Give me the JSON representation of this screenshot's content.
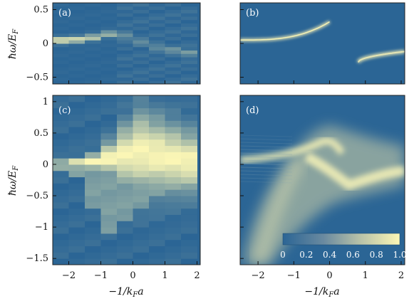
{
  "chart_data": [
    {
      "panel": "(a)",
      "type": "heatmap",
      "x": [
        -2.25,
        -1.75,
        -1.25,
        -0.75,
        -0.25,
        0.25,
        0.75,
        1.25,
        1.75
      ],
      "ylim": [
        -0.6,
        0.6
      ],
      "xlim": [
        -2.5,
        2.1
      ],
      "ridge_peak_y": [
        0.05,
        0.06,
        0.09,
        0.14,
        0.12,
        0.02,
        -0.05,
        -0.1,
        -0.14
      ],
      "ridge_intensity": [
        0.95,
        0.85,
        0.7,
        0.55,
        0.3,
        0.25,
        0.25,
        0.3,
        0.35
      ],
      "ylabel": "ħω/E_F",
      "yticks": [
        "0.5",
        "0",
        "−0.5"
      ]
    },
    {
      "panel": "(b)",
      "type": "heatmap",
      "xlim": [
        -2.5,
        2.1
      ],
      "ylim": [
        -0.6,
        0.6
      ],
      "upper_branch": {
        "from_x": -2.5,
        "to_x": 0.0,
        "y_start": 0.05,
        "y_end": 0.32
      },
      "lower_branch": {
        "from_x": 0.8,
        "to_x": 2.1,
        "y_start": -0.28,
        "y_end": -0.12
      }
    },
    {
      "panel": "(c)",
      "type": "heatmap",
      "x": [
        -2.25,
        -1.75,
        -1.25,
        -0.75,
        -0.25,
        0.25,
        0.75,
        1.25,
        1.75
      ],
      "xlim": [
        -2.5,
        2.1
      ],
      "ylim": [
        -1.6,
        1.1
      ],
      "ridge_peak_y": [
        0.0,
        0.02,
        0.05,
        0.1,
        0.15,
        0.2,
        0.15,
        0.1,
        0.05
      ],
      "ridge_width": [
        0.06,
        0.08,
        0.12,
        0.25,
        0.45,
        0.6,
        0.55,
        0.5,
        0.45
      ],
      "lower_tail_y": [
        0.0,
        -0.2,
        -0.7,
        -1.1,
        -0.9,
        -0.7,
        -0.5,
        -0.3,
        -0.2
      ],
      "ylabel": "ħω/E_F",
      "yticks": [
        "1",
        "0.5",
        "0",
        "−0.5",
        "−1",
        "−1.5"
      ],
      "xticks": [
        "−2",
        "−1",
        "0",
        "1",
        "2"
      ],
      "xlabel": "−1/k_Fa"
    },
    {
      "panel": "(d)",
      "type": "heatmap",
      "xlim": [
        -2.5,
        2.1
      ],
      "ylim": [
        -1.6,
        1.1
      ],
      "xticks": [
        "−2",
        "−1",
        "0",
        "1",
        "2"
      ],
      "xlabel": "−1/k_Fa",
      "colorbar": {
        "range": [
          0,
          1.0
        ],
        "ticks": [
          "0",
          "0.2",
          "0.4",
          "0.6",
          "0.8",
          "1.0"
        ]
      }
    }
  ],
  "labels": {
    "a": "(a)",
    "b": "(b)",
    "c": "(c)",
    "d": "(d)",
    "ylabel_top": "ħω/E",
    "ylabel_top_sub": "F",
    "ylabel_bot": "ħω/E",
    "ylabel_bot_sub": "F",
    "xlabel_main": "−1/k",
    "xlabel_sub": "F",
    "xlabel_tail": "a"
  },
  "colors": {
    "background": "#2b6595",
    "peak": "#fbf6b5"
  }
}
